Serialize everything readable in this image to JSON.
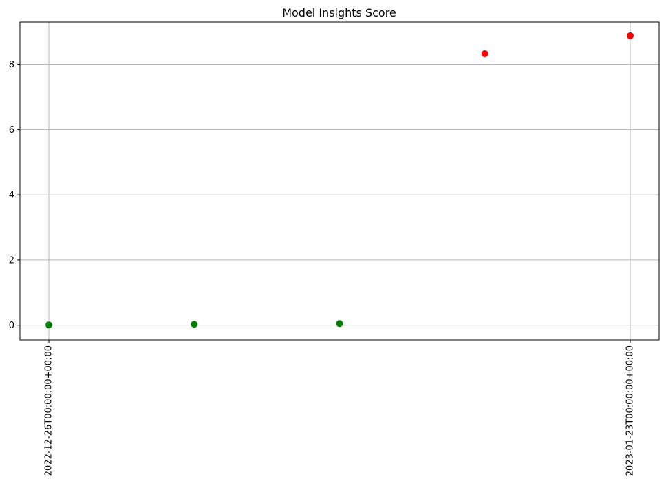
{
  "chart_data": {
    "type": "scatter",
    "title": "Model Insights Score",
    "xlabel": "",
    "ylabel": "",
    "x_axis_kind": "date",
    "xlim": [
      "2022-12-26",
      "2023-01-23"
    ],
    "ylim": [
      -0.45,
      9.3
    ],
    "x_ticks": [
      {
        "value": "2022-12-26",
        "label": "2022-12-26T00:00:00+00:00"
      },
      {
        "value": "2023-01-23",
        "label": "2023-01-23T00:00:00+00:00"
      }
    ],
    "y_ticks": [
      0,
      2,
      4,
      6,
      8
    ],
    "grid": true,
    "legend": "none",
    "points": [
      {
        "x": "2022-12-26",
        "y": 0.01,
        "color": "#008000"
      },
      {
        "x": "2023-01-02",
        "y": 0.03,
        "color": "#008000"
      },
      {
        "x": "2023-01-09",
        "y": 0.05,
        "color": "#008000"
      },
      {
        "x": "2023-01-16",
        "y": 8.33,
        "color": "#ff0000"
      },
      {
        "x": "2023-01-23",
        "y": 8.88,
        "color": "#ff0000"
      }
    ]
  }
}
